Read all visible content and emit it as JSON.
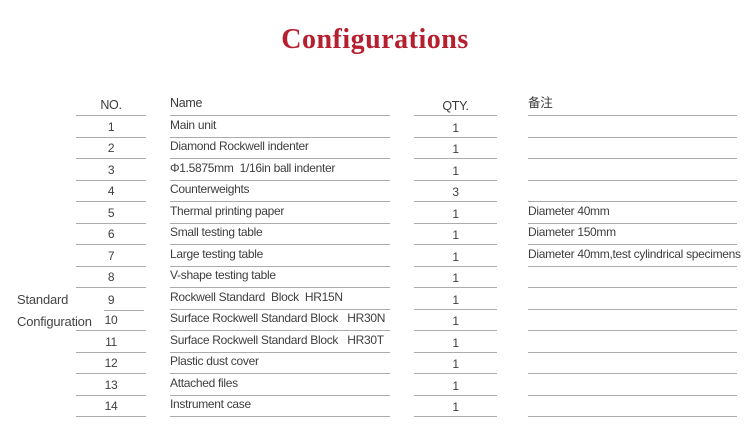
{
  "title": "Configurations",
  "title_color": "#b51f2e",
  "text_color": "#3e3e3e",
  "line_color": "#ababab",
  "table": {
    "headers": {
      "no": "NO.",
      "name": "Name",
      "qty": "QTY.",
      "remark": "备注"
    },
    "side_label": {
      "line1": "Standard",
      "line2": "Configuration"
    },
    "rows": [
      {
        "no": "1",
        "name": "Main unit",
        "qty": "1",
        "remark": ""
      },
      {
        "no": "2",
        "name": "Diamond Rockwell indenter",
        "qty": "1",
        "remark": ""
      },
      {
        "no": "3",
        "name": "Φ1.5875mm  1/16in ball indenter",
        "qty": "1",
        "remark": ""
      },
      {
        "no": "4",
        "name": "Counterweights",
        "qty": "3",
        "remark": ""
      },
      {
        "no": "5",
        "name": "Thermal printing paper",
        "qty": "1",
        "remark": "Diameter 40mm"
      },
      {
        "no": "6",
        "name": "Small testing table",
        "qty": "1",
        "remark": "Diameter 150mm"
      },
      {
        "no": "7",
        "name": "Large testing table",
        "qty": "1",
        "remark": "Diameter 40mm,test cylindrical specimens"
      },
      {
        "no": "8",
        "name": "V-shape testing table",
        "qty": "1",
        "remark": ""
      },
      {
        "no": "9",
        "name": "Rockwell Standard  Block  HR15N",
        "qty": "1",
        "remark": ""
      },
      {
        "no": "10",
        "name": "Surface Rockwell Standard Block   HR30N",
        "qty": "1",
        "remark": ""
      },
      {
        "no": "11",
        "name": "Surface Rockwell Standard Block   HR30T",
        "qty": "1",
        "remark": ""
      },
      {
        "no": "12",
        "name": "Plastic dust cover",
        "qty": "1",
        "remark": ""
      },
      {
        "no": "13",
        "name": "Attached files",
        "qty": "1",
        "remark": ""
      },
      {
        "no": "14",
        "name": "Instrument case",
        "qty": "1",
        "remark": ""
      }
    ]
  }
}
